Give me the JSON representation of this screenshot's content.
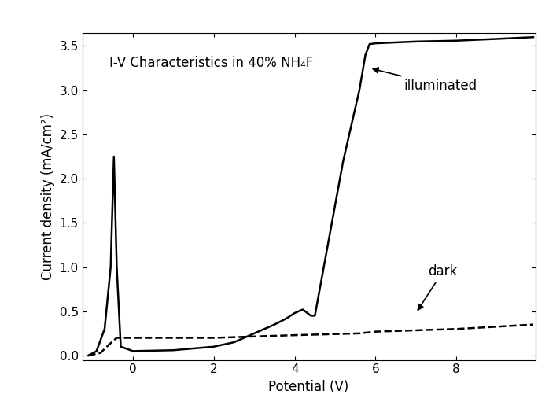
{
  "chart_data": {
    "type": "line",
    "title": "I-V Characteristics in 40% NH₄F",
    "x_label": "Potential (V)",
    "y_label": "Current density (mA/cm²)",
    "xlim": [
      -1.25,
      9.95
    ],
    "xticks": [
      0,
      2,
      4,
      6,
      8
    ],
    "ylim": [
      -0.05,
      3.65
    ],
    "yticks": [
      {
        "value": 0,
        "label": "0.0"
      },
      {
        "value": 0.5,
        "label": "0.5"
      },
      {
        "value": 1,
        "label": "1.0"
      },
      {
        "value": 1.5,
        "label": "1.5"
      },
      {
        "value": 2,
        "label": "2.0"
      },
      {
        "value": 2.5,
        "label": "2.5"
      },
      {
        "value": 3,
        "label": "3.0"
      },
      {
        "value": 3.5,
        "label": "3.5"
      }
    ],
    "grid": false,
    "series": [
      {
        "name": "illuminated",
        "color": "#000000",
        "line_style": "solid",
        "x": [
          -1.1,
          -0.9,
          -0.7,
          -0.55,
          -0.47,
          -0.4,
          -0.3,
          0,
          1,
          2,
          2.5,
          3,
          3.5,
          3.8,
          4,
          4.2,
          4.4,
          4.5,
          4.8,
          5.2,
          5.6,
          5.75,
          5.85,
          6,
          7,
          8,
          9,
          9.9
        ],
        "values": [
          0,
          0.05,
          0.3,
          1.0,
          2.25,
          1.0,
          0.1,
          0.05,
          0.06,
          0.1,
          0.15,
          0.25,
          0.35,
          0.42,
          0.48,
          0.52,
          0.45,
          0.45,
          1.2,
          2.2,
          3.0,
          3.4,
          3.52,
          3.53,
          3.55,
          3.56,
          3.58,
          3.6
        ]
      },
      {
        "name": "dark",
        "color": "#000000",
        "line_style": "dashed",
        "x": [
          -1.1,
          -0.8,
          -0.6,
          -0.4,
          0,
          2,
          4,
          5.6,
          6,
          8,
          9.9
        ],
        "values": [
          0,
          0.03,
          0.12,
          0.2,
          0.2,
          0.2,
          0.23,
          0.25,
          0.27,
          0.3,
          0.35
        ]
      }
    ]
  }
}
